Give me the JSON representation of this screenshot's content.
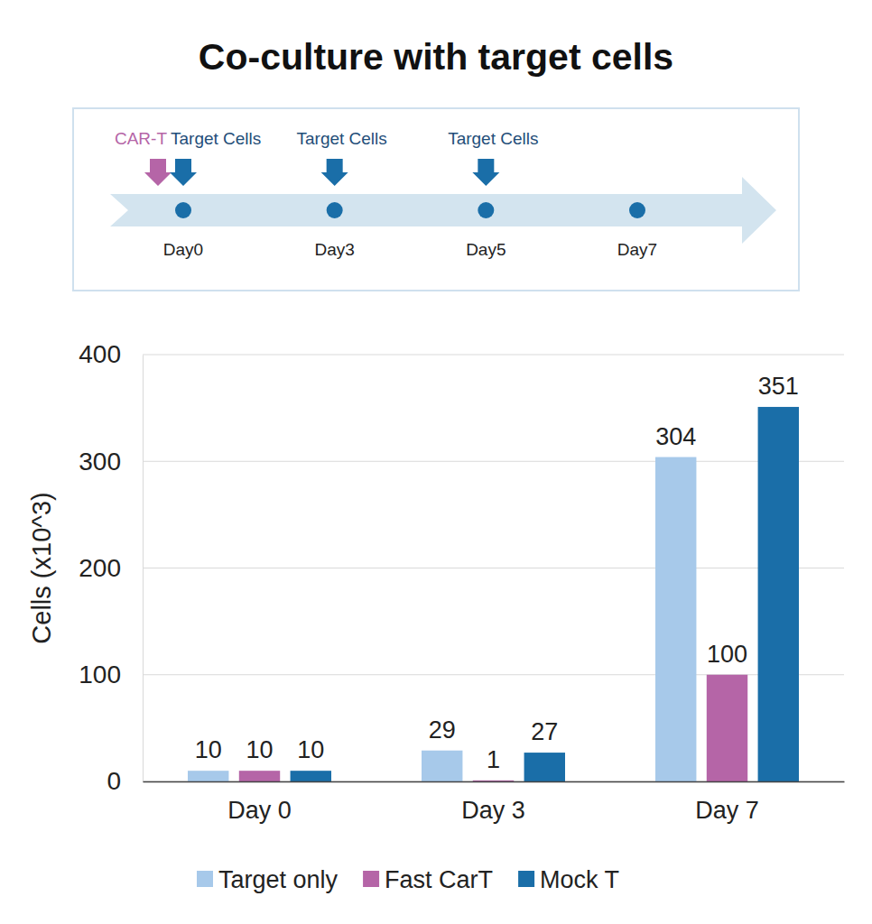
{
  "chart_data": {
    "type": "bar",
    "title": "Co-culture with target cells",
    "timeline": {
      "points": [
        "Day0",
        "Day3",
        "Day5",
        "Day7"
      ],
      "arrows": [
        [
          "CAR-T",
          "Target Cells"
        ],
        [
          "Target Cells"
        ],
        [
          "Target Cells"
        ],
        []
      ]
    },
    "y_label": "Cells (x10^3)",
    "categories": [
      "Day 0",
      "Day 3",
      "Day 7"
    ],
    "series": [
      {
        "name": "Target only",
        "color": "#a7c9ea",
        "values": [
          10,
          29,
          304
        ]
      },
      {
        "name": "Fast CarT",
        "color": "#b565a7",
        "values": [
          10,
          1,
          100
        ]
      },
      {
        "name": "Mock T",
        "color": "#1a6ea8",
        "values": [
          10,
          27,
          351
        ]
      }
    ],
    "ylim": [
      0,
      400
    ],
    "yticks": [
      0,
      100,
      200,
      300,
      400
    ],
    "grid": true,
    "data_labels": true,
    "legend": "bottom"
  }
}
